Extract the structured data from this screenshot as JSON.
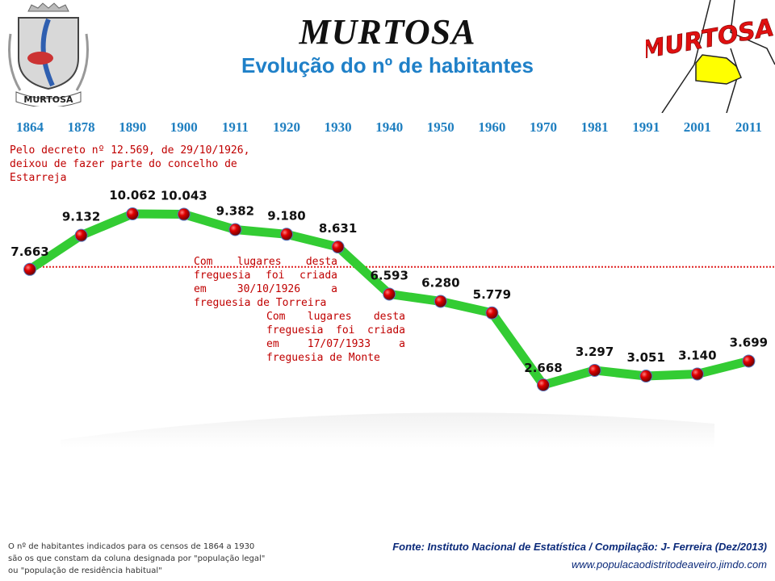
{
  "header": {
    "title": "MURTOSA",
    "subtitle": "Evolução do nº de habitantes",
    "crest_label": "MURTOSA",
    "map_label": "MURTOSA"
  },
  "chart_data": {
    "type": "line",
    "title": "Evolução do nº de habitantes",
    "categories": [
      "1864",
      "1878",
      "1890",
      "1900",
      "1911",
      "1920",
      "1930",
      "1940",
      "1950",
      "1960",
      "1970",
      "1981",
      "1991",
      "2001",
      "2011"
    ],
    "values": [
      7663,
      9132,
      10062,
      10043,
      9382,
      9180,
      8631,
      6593,
      6280,
      5779,
      2668,
      3297,
      3051,
      3140,
      3699
    ],
    "labels": [
      "7.663",
      "9.132",
      "10.062",
      "10.043",
      "9.382",
      "9.180",
      "8.631",
      "6.593",
      "6.280",
      "5.779",
      "2.668",
      "3.297",
      "3.051",
      "3.140",
      "3.699"
    ],
    "line_color": "#33cc33",
    "marker_color": "#cc0000",
    "reference_line_color": "#e02020",
    "reference_value": 7663,
    "annotations": [
      "Pelo decreto nº 12.569, de 29/10/1926, deixou de fazer parte do concelho de Estarreja",
      "Com lugares desta freguesia foi criada em 30/10/1926 a freguesia de Torreira",
      "Com lugares desta freguesia foi criada em 17/07/1933 a freguesia de Monte"
    ]
  },
  "footer": {
    "note": "O nº de habitantes indicados para os censos de 1864 a 1930 são os que constam da coluna designada por \"população legal\" ou \"população de residência habitual\"",
    "source": "Fonte: Instituto Nacional de Estatística / Compilação: J- Ferreira (Dez/2013)",
    "website": "www.populacaodistritodeaveiro.jimdo.com"
  }
}
